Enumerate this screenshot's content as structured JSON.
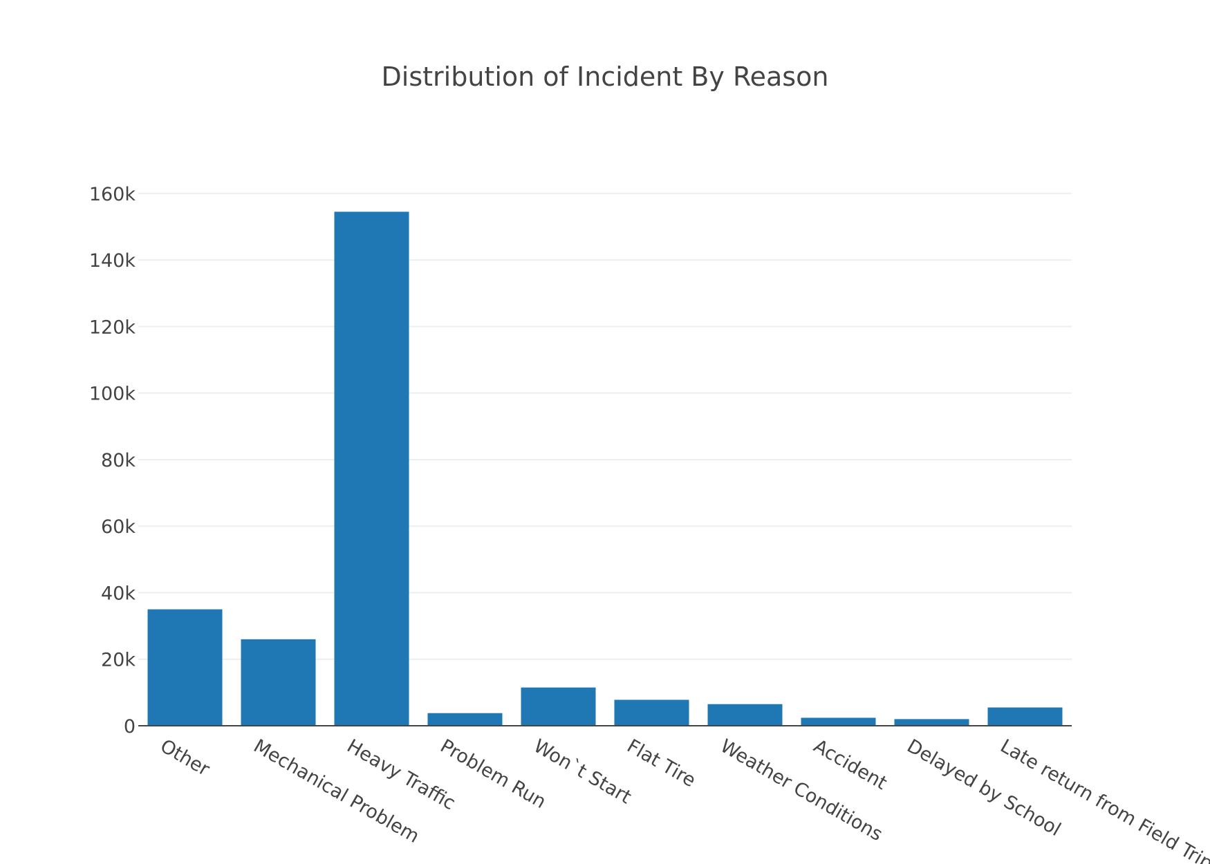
{
  "chart_data": {
    "type": "bar",
    "title": "Distribution of Incident By Reason",
    "xlabel": "",
    "ylabel": "",
    "categories": [
      "Other",
      "Mechanical Problem",
      "Heavy Traffic",
      "Problem Run",
      "Won`t Start",
      "Flat Tire",
      "Weather Conditions",
      "Accident",
      "Delayed by School",
      "Late return from Field Trip"
    ],
    "values": [
      35000,
      26000,
      154500,
      3800,
      11500,
      7800,
      6500,
      2400,
      2000,
      5500
    ],
    "ylim": [
      0,
      166000
    ],
    "yticks": [
      0,
      20000,
      40000,
      60000,
      80000,
      100000,
      120000,
      140000,
      160000
    ],
    "ytick_labels": [
      "0",
      "20k",
      "40k",
      "60k",
      "80k",
      "100k",
      "120k",
      "140k",
      "160k"
    ],
    "bar_color": "#1f77b4",
    "grid": true,
    "legend": "none"
  }
}
